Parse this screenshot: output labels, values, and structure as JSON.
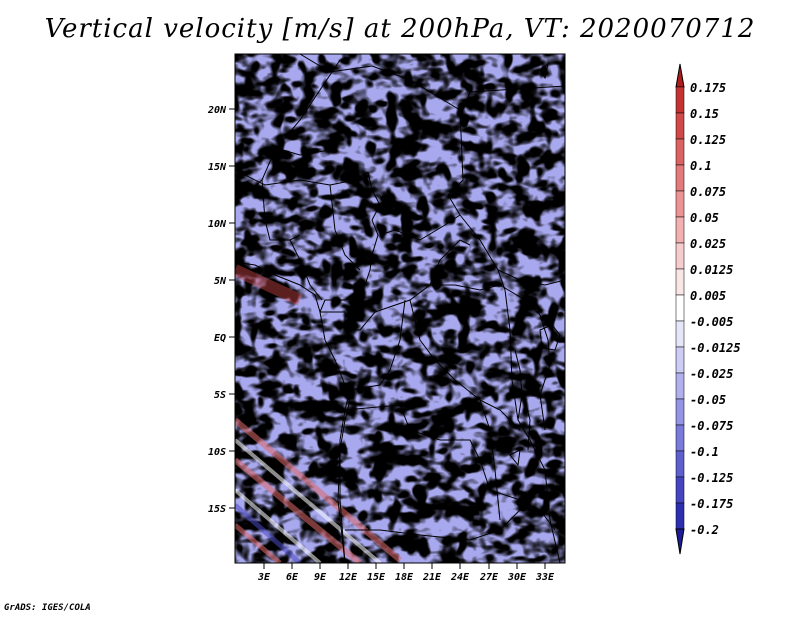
{
  "title": "Vertical velocity [m/s] at 200hPa, VT: 2020070712",
  "footer": "GrADS: IGES/COLA",
  "map": {
    "lat_labels": [
      "20N",
      "15N",
      "10N",
      "5N",
      "EQ",
      "5S",
      "10S",
      "15S"
    ],
    "lon_labels": [
      "3E",
      "6E",
      "9E",
      "12E",
      "15E",
      "18E",
      "21E",
      "24E",
      "27E",
      "30E",
      "33E"
    ]
  },
  "colorbar": {
    "labels": [
      "0.175",
      "0.15",
      "0.125",
      "0.1",
      "0.075",
      "0.05",
      "0.025",
      "0.0125",
      "0.005",
      "-0.005",
      "-0.0125",
      "-0.025",
      "-0.05",
      "-0.075",
      "-0.1",
      "-0.125",
      "-0.175",
      "-0.2"
    ],
    "colors": [
      "#b01c1c",
      "#c43232",
      "#d24848",
      "#dd6262",
      "#e57a7a",
      "#ec9494",
      "#f2b0b0",
      "#f7cccc",
      "#fbe6e6",
      "#ffffff",
      "#e6e6fb",
      "#ccccf4",
      "#b0b0ee",
      "#9494e6",
      "#7a7adc",
      "#5f5fd0",
      "#4545c2",
      "#2e2eb0",
      "#1c1c9a"
    ]
  }
}
